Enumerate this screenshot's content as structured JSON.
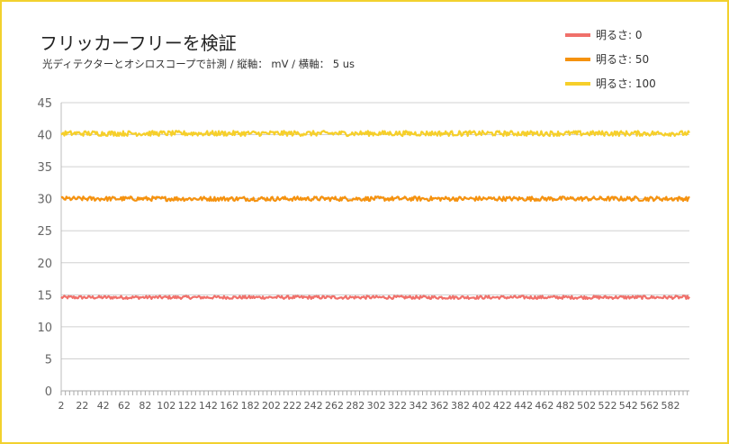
{
  "chart_data": {
    "type": "line",
    "title": "フリッカーフリーを検証",
    "subtitle": "光ディテクターとオシロスコープで計測 / 縦軸： mV / 横軸： 5 us",
    "ylim": [
      0,
      45
    ],
    "yticks": [
      0,
      5,
      10,
      15,
      20,
      25,
      30,
      35,
      40,
      45
    ],
    "x_start": 2,
    "x_end": 600,
    "x_tick_labels": [
      "2",
      "22",
      "42",
      "62",
      "82",
      "102",
      "122",
      "142",
      "162",
      "182",
      "202",
      "222",
      "242",
      "262",
      "282",
      "302",
      "322",
      "342",
      "362",
      "382",
      "402",
      "422",
      "442",
      "462",
      "482",
      "502",
      "522",
      "542",
      "562",
      "582"
    ],
    "grid": true,
    "legend_position": "top-right",
    "series": [
      {
        "name": "明るさ: 0",
        "mean": 14.6,
        "noise": 0.25,
        "color": "#f0706a"
      },
      {
        "name": "明るさ: 50",
        "mean": 30.0,
        "noise": 0.35,
        "color": "#f5920f"
      },
      {
        "name": "明るさ: 100",
        "mean": 40.2,
        "noise": 0.4,
        "color": "#f6cf2a"
      }
    ]
  }
}
